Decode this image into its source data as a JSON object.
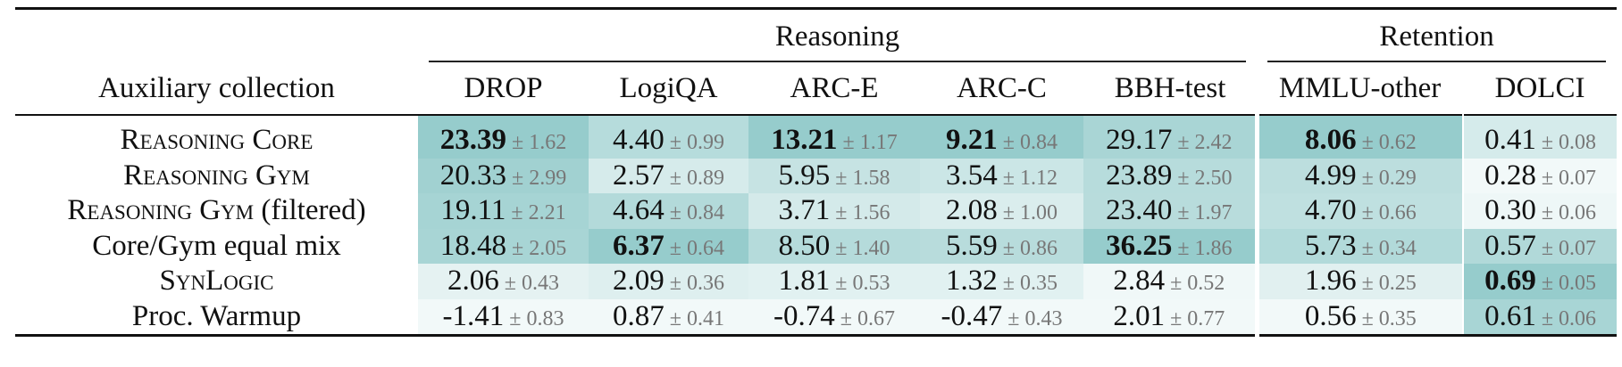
{
  "table": {
    "header_label": "Auxiliary collection",
    "plus_minus": "±",
    "groups": [
      {
        "label": "Reasoning",
        "span": 5
      },
      {
        "label": "Retention",
        "span": 2
      }
    ],
    "columns": [
      "DROP",
      "LogiQA",
      "ARC-E",
      "ARC-C",
      "BBH-test",
      "MMLU-other",
      "DOLCI"
    ],
    "rows": [
      {
        "label": [
          {
            "text": "Reasoning Core",
            "smallcaps": true
          }
        ],
        "cells": [
          {
            "value": "23.39",
            "err": "1.62",
            "bold": true
          },
          {
            "value": "4.40",
            "err": "0.99"
          },
          {
            "value": "13.21",
            "err": "1.17",
            "bold": true
          },
          {
            "value": "9.21",
            "err": "0.84",
            "bold": true
          },
          {
            "value": "29.17",
            "err": "2.42"
          },
          {
            "value": "8.06",
            "err": "0.62",
            "bold": true
          },
          {
            "value": "0.41",
            "err": "0.08"
          }
        ]
      },
      {
        "label": [
          {
            "text": "Reasoning Gym",
            "smallcaps": true
          }
        ],
        "cells": [
          {
            "value": "20.33",
            "err": "2.99"
          },
          {
            "value": "2.57",
            "err": "0.89"
          },
          {
            "value": "5.95",
            "err": "1.58"
          },
          {
            "value": "3.54",
            "err": "1.12"
          },
          {
            "value": "23.89",
            "err": "2.50"
          },
          {
            "value": "4.99",
            "err": "0.29"
          },
          {
            "value": "0.28",
            "err": "0.07"
          }
        ]
      },
      {
        "label": [
          {
            "text": "Reasoning Gym",
            "smallcaps": true
          },
          {
            "text": " (filtered)"
          }
        ],
        "cells": [
          {
            "value": "19.11",
            "err": "2.21"
          },
          {
            "value": "4.64",
            "err": "0.84"
          },
          {
            "value": "3.71",
            "err": "1.56"
          },
          {
            "value": "2.08",
            "err": "1.00"
          },
          {
            "value": "23.40",
            "err": "1.97"
          },
          {
            "value": "4.70",
            "err": "0.66"
          },
          {
            "value": "0.30",
            "err": "0.06"
          }
        ]
      },
      {
        "label": [
          {
            "text": "Core/Gym equal mix"
          }
        ],
        "cells": [
          {
            "value": "18.48",
            "err": "2.05"
          },
          {
            "value": "6.37",
            "err": "0.64",
            "bold": true
          },
          {
            "value": "8.50",
            "err": "1.40"
          },
          {
            "value": "5.59",
            "err": "0.86"
          },
          {
            "value": "36.25",
            "err": "1.86",
            "bold": true
          },
          {
            "value": "5.73",
            "err": "0.34"
          },
          {
            "value": "0.57",
            "err": "0.07"
          }
        ]
      },
      {
        "label": [
          {
            "text": "SynLogic",
            "smallcaps": true
          }
        ],
        "cells": [
          {
            "value": "2.06",
            "err": "0.43"
          },
          {
            "value": "2.09",
            "err": "0.36"
          },
          {
            "value": "1.81",
            "err": "0.53"
          },
          {
            "value": "1.32",
            "err": "0.35"
          },
          {
            "value": "2.84",
            "err": "0.52"
          },
          {
            "value": "1.96",
            "err": "0.25"
          },
          {
            "value": "0.69",
            "err": "0.05",
            "bold": true
          }
        ]
      },
      {
        "label": [
          {
            "text": "Proc. Warmup"
          }
        ],
        "cells": [
          {
            "value": "-1.41",
            "err": "0.83"
          },
          {
            "value": "0.87",
            "err": "0.41"
          },
          {
            "value": "-0.74",
            "err": "0.67"
          },
          {
            "value": "-0.47",
            "err": "0.43"
          },
          {
            "value": "2.01",
            "err": "0.77"
          },
          {
            "value": "0.56",
            "err": "0.35"
          },
          {
            "value": "0.61",
            "err": "0.06"
          }
        ]
      }
    ]
  }
}
